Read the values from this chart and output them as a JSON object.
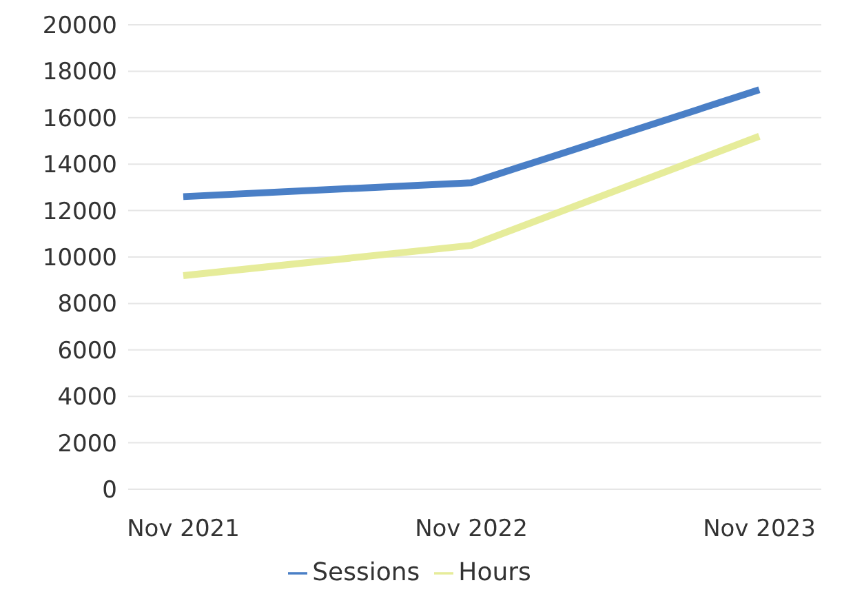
{
  "chart_data": {
    "type": "line",
    "categories": [
      "Nov 2021",
      "Nov 2022",
      "Nov 2023"
    ],
    "series": [
      {
        "name": "Sessions",
        "color": "#4a7fc6",
        "values": [
          12600,
          13200,
          17200
        ]
      },
      {
        "name": "Hours",
        "color": "#e6ec9a",
        "values": [
          9200,
          10500,
          15200
        ]
      }
    ],
    "ylim": [
      0,
      20000
    ],
    "yticks": [
      0,
      2000,
      4000,
      6000,
      8000,
      10000,
      12000,
      14000,
      16000,
      18000,
      20000
    ],
    "grid": "y",
    "legend": "bottom",
    "marker": "none",
    "line_style": "solid"
  }
}
